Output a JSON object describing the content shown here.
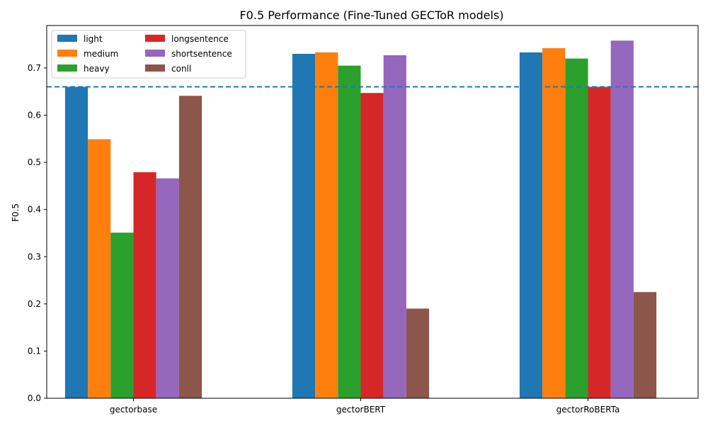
{
  "chart_data": {
    "type": "bar",
    "title": "F0.5 Performance (Fine-Tuned GECToR models)",
    "xlabel": "",
    "ylabel": "F0.5",
    "ylim": [
      0,
      0.79
    ],
    "yticks": [
      "0.0",
      "0.1",
      "0.2",
      "0.3",
      "0.4",
      "0.5",
      "0.6",
      "0.7"
    ],
    "categories": [
      "gectorbase",
      "gectorBERT",
      "gectorRoBERTa"
    ],
    "series": [
      {
        "name": "light",
        "color": "#1f77b4",
        "values": [
          0.66,
          0.73,
          0.733
        ]
      },
      {
        "name": "medium",
        "color": "#ff7f0e",
        "values": [
          0.549,
          0.733,
          0.742
        ]
      },
      {
        "name": "heavy",
        "color": "#2ca02c",
        "values": [
          0.351,
          0.705,
          0.72
        ]
      },
      {
        "name": "longsentence",
        "color": "#d62728",
        "values": [
          0.479,
          0.647,
          0.66
        ]
      },
      {
        "name": "shortsentence",
        "color": "#9467bd",
        "values": [
          0.466,
          0.727,
          0.758
        ]
      },
      {
        "name": "conll",
        "color": "#8c564b",
        "values": [
          0.641,
          0.19,
          0.225
        ]
      }
    ],
    "reference_line": {
      "value": 0.66,
      "style": "dashed",
      "color": "#1f77b4"
    },
    "legend": {
      "placement": "top-left",
      "columns": 2
    },
    "grid": false
  }
}
